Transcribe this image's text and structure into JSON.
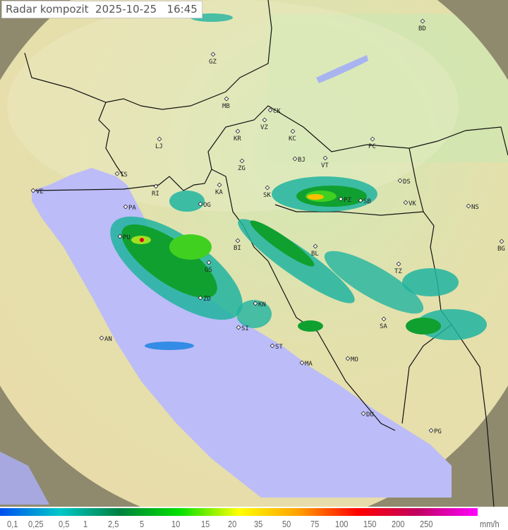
{
  "title": {
    "label": "Radar kompozit",
    "date": "2025-10-25",
    "time": "16:45"
  },
  "map": {
    "cities": [
      "BD",
      "GZ",
      "MB",
      "CK",
      "VZ",
      "KR",
      "KC",
      "PC",
      "LJ",
      "TS",
      "ZG",
      "VT",
      "BJ",
      "VE",
      "RI",
      "KA",
      "SK",
      "PZ",
      "SB",
      "DS",
      "VK",
      "NS",
      "PA",
      "OG",
      "PU",
      "BI",
      "BL",
      "BG",
      "GS",
      "TZ",
      "ZD",
      "KN",
      "SI",
      "SA",
      "AN",
      "ST",
      "MO",
      "MA",
      "DU",
      "PG"
    ],
    "colors": {
      "sea": "#bcbcf8",
      "land": "#e6e2a8",
      "lowland": "#cfe6b0",
      "outside": "#8f8a6e",
      "border": "#111111"
    }
  },
  "legend": {
    "labels": [
      "0,1",
      "0,25",
      "0,5",
      "1",
      "2,5",
      "5",
      "10",
      "15",
      "20",
      "35",
      "50",
      "75",
      "100",
      "150",
      "200",
      "250"
    ],
    "unit": "mm/h",
    "colors": [
      "#0050f0",
      "#00c8c8",
      "#008040",
      "#00e000",
      "#ffff00",
      "#ffa000",
      "#ff0000",
      "#c00060",
      "#ff00ff"
    ]
  }
}
